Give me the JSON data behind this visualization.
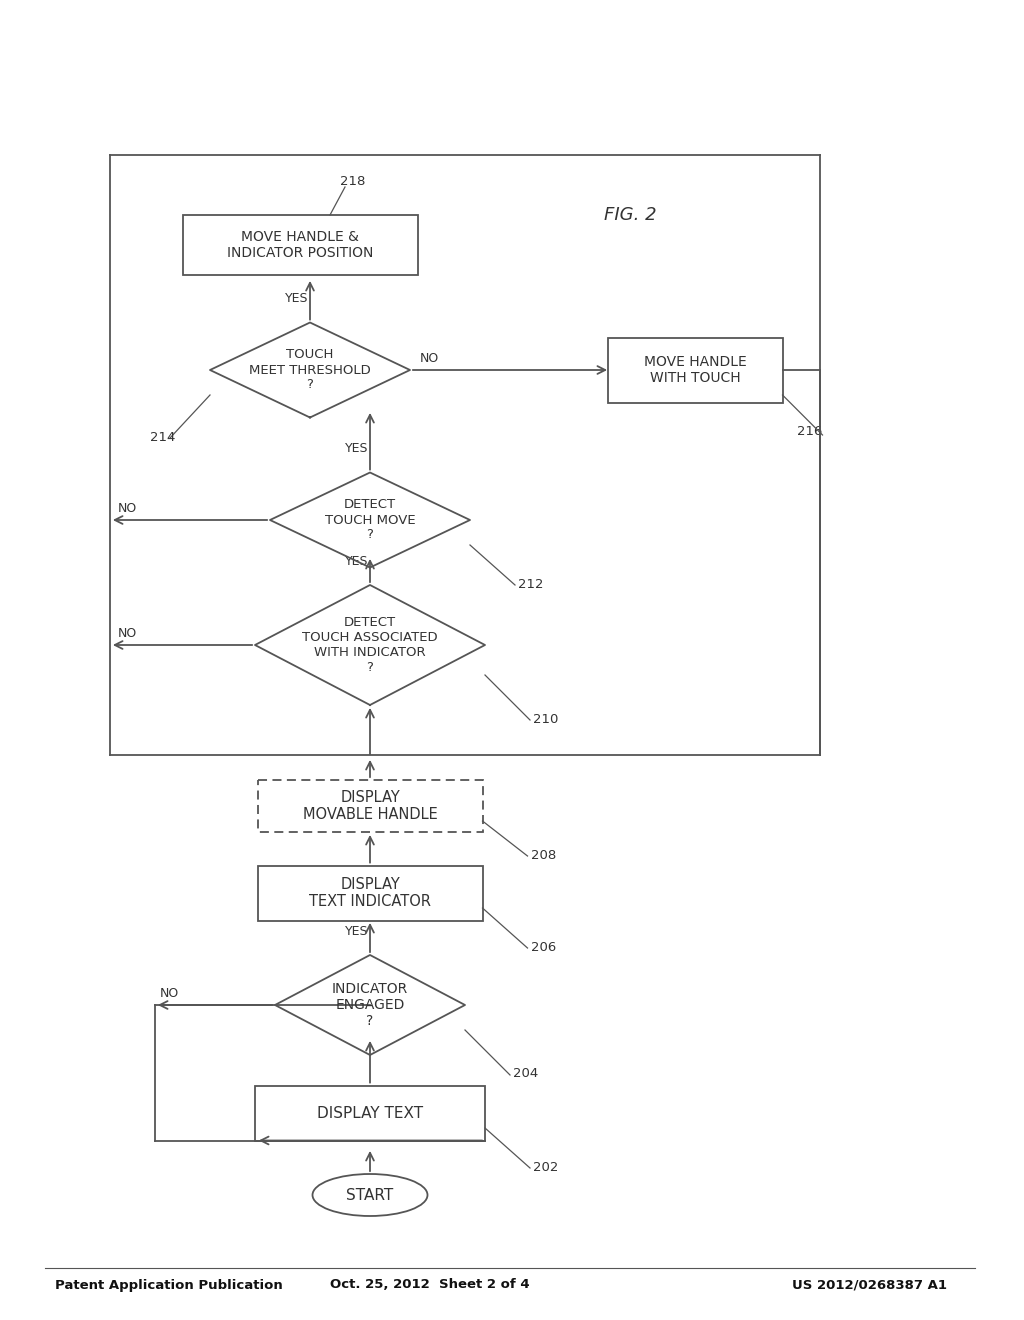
{
  "header_left": "Patent Application Publication",
  "header_center": "Oct. 25, 2012  Sheet 2 of 4",
  "header_right": "US 2012/0268387 A1",
  "fig_label": "FIG. 2",
  "background_color": "#ffffff",
  "line_color": "#555555",
  "text_color": "#333333",
  "font_family": "DejaVu Sans"
}
